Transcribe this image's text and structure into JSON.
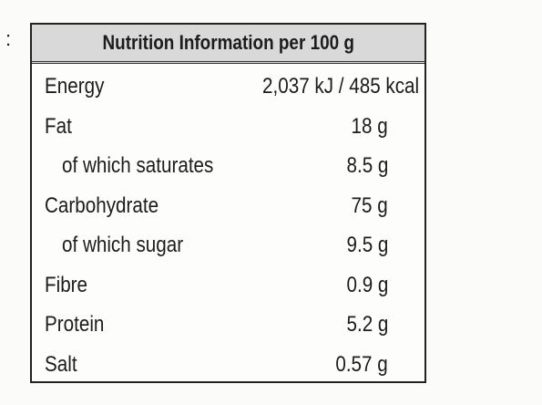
{
  "leading_text": ":",
  "table": {
    "title": "Nutrition Information per 100 g",
    "rows": [
      {
        "label": "Energy",
        "value": "2,037 kJ / 485 kcal",
        "indent": false
      },
      {
        "label": "Fat",
        "value": "18 g",
        "indent": false
      },
      {
        "label": "of which saturates",
        "value": "8.5 g",
        "indent": true
      },
      {
        "label": "Carbohydrate",
        "value": "75 g",
        "indent": false
      },
      {
        "label": "of which sugar",
        "value": "9.5 g",
        "indent": true
      },
      {
        "label": "Fibre",
        "value": "0.9 g",
        "indent": false
      },
      {
        "label": "Protein",
        "value": "5.2 g",
        "indent": false
      },
      {
        "label": "Salt",
        "value": "0.57 g",
        "indent": false
      }
    ]
  }
}
